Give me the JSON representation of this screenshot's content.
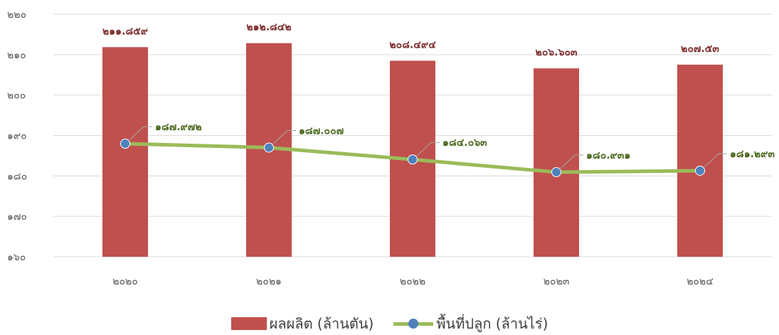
{
  "chart_data": {
    "type": "bar+line",
    "categories": [
      "๒๐๒๐",
      "๒๐๒๑",
      "๒๐๒๒",
      "๒๐๒๓",
      "๒๐๒๔"
    ],
    "ylim": [
      160,
      220
    ],
    "yticks": [
      160,
      170,
      180,
      190,
      200,
      210,
      220
    ],
    "ytick_labels": [
      "๑๖๐",
      "๑๗๐",
      "๑๘๐",
      "๑๙๐",
      "๒๐๐",
      "๒๑๐",
      "๒๒๐"
    ],
    "grid": true,
    "legend_position": "bottom",
    "series": [
      {
        "name": "ผลผลิต (ล้านตัน)",
        "kind": "bar",
        "color": "#c0504d",
        "values": [
          211.859,
          212.842,
          208.494,
          206.603,
          207.53
        ],
        "labels": [
          "๒๑๑.๘๕๙",
          "๒๑๒.๘๔๒",
          "๒๐๘.๔๙๔",
          "๒๐๖.๖๐๓",
          "๒๐๗.๕๓"
        ]
      },
      {
        "name": "พื้นที่ปลูก (ล้านไร่)",
        "kind": "line",
        "color": "#9bbb59",
        "marker_color": "#4f81bd",
        "values": [
          187.972,
          187.007,
          184.063,
          180.931,
          181.293
        ],
        "labels": [
          "๑๘๗.๙๗๒",
          "๑๘๗.๐๐๗",
          "๑๘๔.๐๖๓",
          "๑๘๐.๙๓๑",
          "๑๘๑.๒๙๓"
        ]
      }
    ]
  }
}
